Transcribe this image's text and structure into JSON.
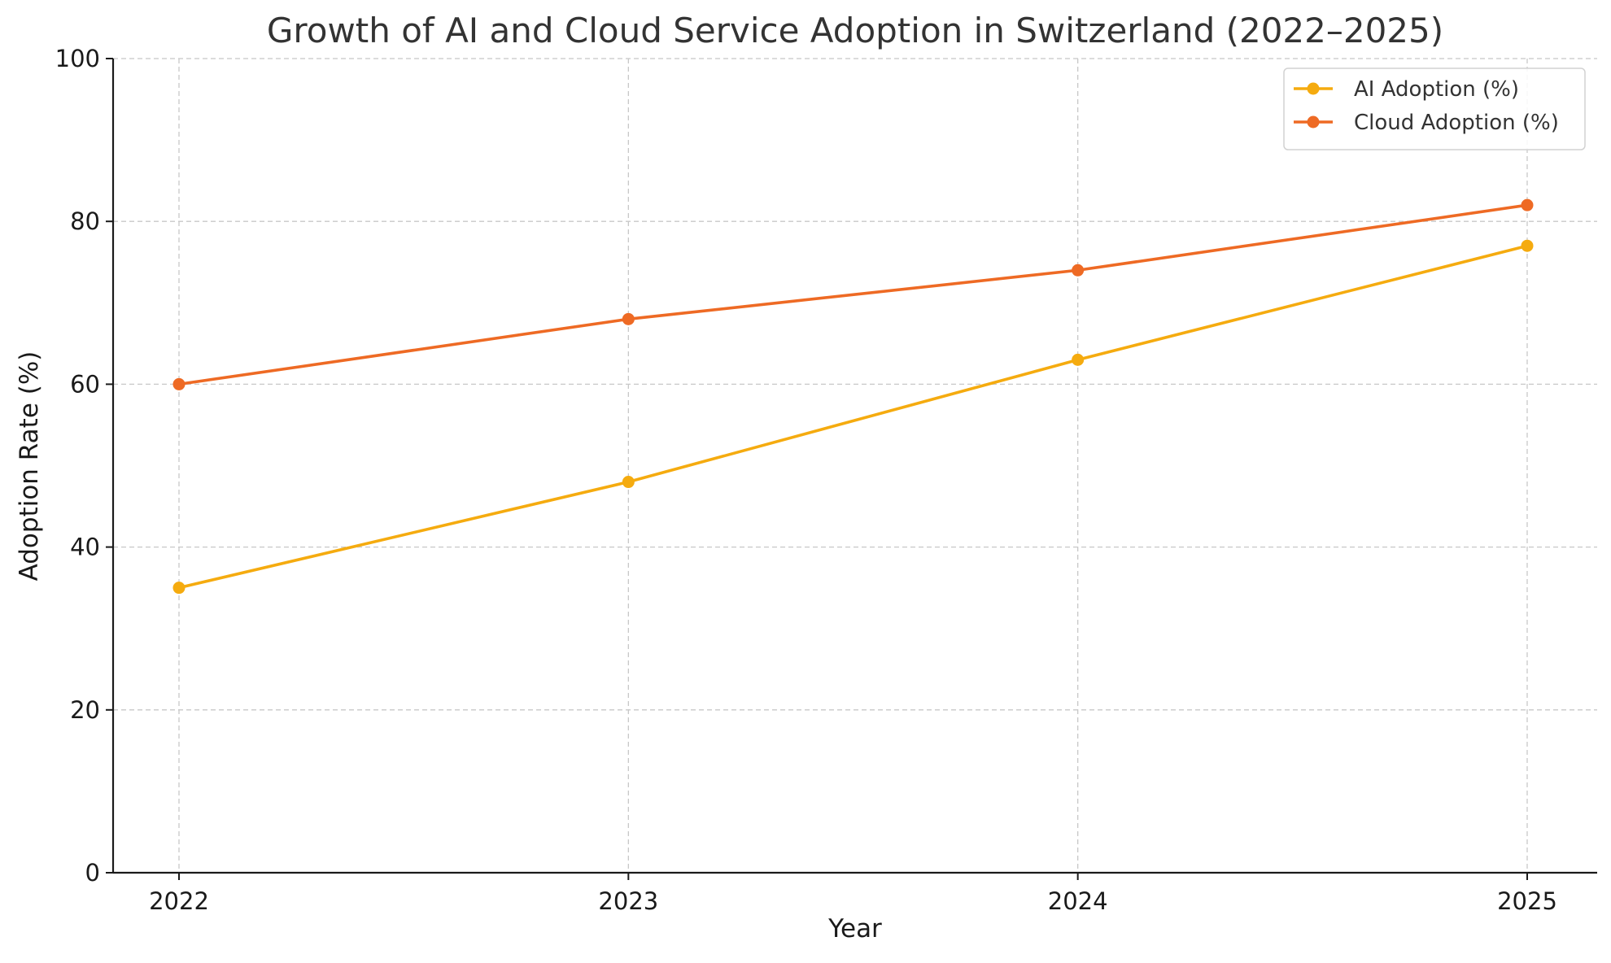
{
  "chart_data": {
    "type": "line",
    "title": "Growth of AI and Cloud Service Adoption in Switzerland (2022–2025)",
    "xlabel": "Year",
    "ylabel": "Adoption Rate (%)",
    "x": [
      "2022",
      "2023",
      "2024",
      "2025"
    ],
    "ylim": [
      0,
      100
    ],
    "yticks": [
      0,
      20,
      40,
      60,
      80,
      100
    ],
    "grid": true,
    "legend_position": "top-right",
    "series": [
      {
        "name": "AI Adoption (%)",
        "color": "#f5ab0f",
        "values": [
          35,
          48,
          63,
          77
        ]
      },
      {
        "name": "Cloud Adoption (%)",
        "color": "#ee6a24",
        "values": [
          60,
          68,
          74,
          82
        ]
      }
    ]
  }
}
